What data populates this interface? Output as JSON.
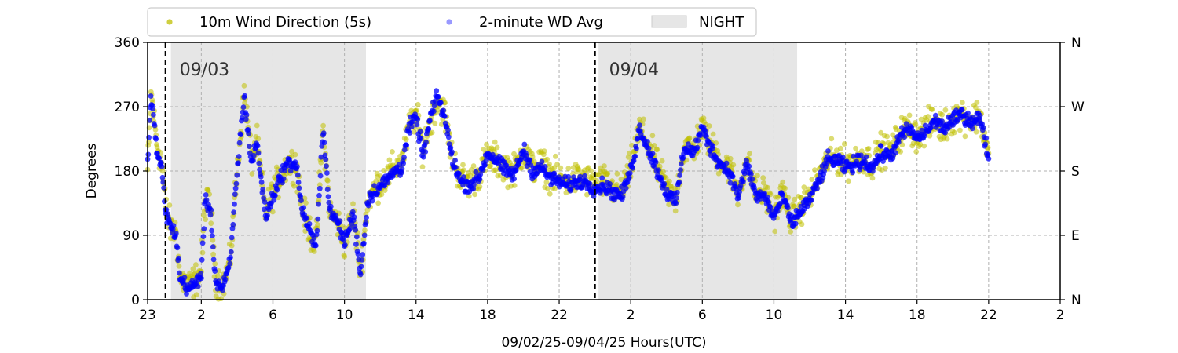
{
  "chart_data": {
    "type": "scatter",
    "xlabel": "09/02/25-09/04/25  Hours(UTC)",
    "ylabel": "Degrees",
    "x_unit": "hours since 09/02/25 23:00 UTC",
    "xlim": [
      0,
      51
    ],
    "ylim": [
      0,
      360
    ],
    "x_ticks": [
      {
        "v": 0,
        "label": "23"
      },
      {
        "v": 3,
        "label": "2"
      },
      {
        "v": 7,
        "label": "6"
      },
      {
        "v": 11,
        "label": "10"
      },
      {
        "v": 15,
        "label": "14"
      },
      {
        "v": 19,
        "label": "18"
      },
      {
        "v": 23,
        "label": "22"
      },
      {
        "v": 27,
        "label": "2"
      },
      {
        "v": 31,
        "label": "6"
      },
      {
        "v": 35,
        "label": "10"
      },
      {
        "v": 39,
        "label": "14"
      },
      {
        "v": 43,
        "label": "18"
      },
      {
        "v": 47,
        "label": "22"
      },
      {
        "v": 51,
        "label": "2"
      }
    ],
    "y_ticks": [
      {
        "v": 0,
        "label": "0"
      },
      {
        "v": 90,
        "label": "90"
      },
      {
        "v": 180,
        "label": "180"
      },
      {
        "v": 270,
        "label": "270"
      },
      {
        "v": 360,
        "label": "360"
      }
    ],
    "y2_ticks": [
      {
        "v": 0,
        "label": "N"
      },
      {
        "v": 90,
        "label": "E"
      },
      {
        "v": 180,
        "label": "S"
      },
      {
        "v": 270,
        "label": "W"
      },
      {
        "v": 360,
        "label": "N"
      }
    ],
    "grid": true,
    "legend_placement": "top-outside",
    "legend": [
      {
        "label": "10m Wind Direction (5s)",
        "kind": "marker",
        "color": "#bfbf00"
      },
      {
        "label": "2-minute WD Avg",
        "kind": "marker",
        "color": "#0000ff"
      },
      {
        "label": "NIGHT",
        "kind": "patch",
        "color": "#e6e6e6"
      }
    ],
    "night_spans": [
      [
        1.3,
        12.2
      ],
      [
        25.2,
        36.3
      ]
    ],
    "day_markers": [
      {
        "x": 1.0,
        "label": "09/03"
      },
      {
        "x": 25.0,
        "label": "09/04"
      }
    ],
    "series": [
      {
        "name": "10m Wind Direction (5s)",
        "color": "#bfbf00",
        "scatter_spread": 22,
        "profile": [
          [
            0.0,
            180
          ],
          [
            0.2,
            290
          ],
          [
            0.5,
            220
          ],
          [
            0.8,
            190
          ],
          [
            1.0,
            130
          ],
          [
            1.3,
            100
          ],
          [
            1.6,
            95
          ],
          [
            1.8,
            30
          ],
          [
            2.3,
            20
          ],
          [
            2.6,
            25
          ],
          [
            3.0,
            40
          ],
          [
            3.2,
            135
          ],
          [
            3.5,
            135
          ],
          [
            3.8,
            30
          ],
          [
            4.2,
            20
          ],
          [
            4.6,
            50
          ],
          [
            5.0,
            180
          ],
          [
            5.4,
            290
          ],
          [
            5.8,
            195
          ],
          [
            6.1,
            220
          ],
          [
            6.6,
            120
          ],
          [
            7.0,
            150
          ],
          [
            7.4,
            170
          ],
          [
            7.8,
            190
          ],
          [
            8.3,
            190
          ],
          [
            8.6,
            130
          ],
          [
            9.0,
            100
          ],
          [
            9.4,
            75
          ],
          [
            9.8,
            240
          ],
          [
            10.2,
            120
          ],
          [
            10.6,
            110
          ],
          [
            11.0,
            80
          ],
          [
            11.5,
            120
          ],
          [
            11.9,
            40
          ],
          [
            12.3,
            140
          ],
          [
            12.8,
            160
          ],
          [
            13.3,
            170
          ],
          [
            13.8,
            185
          ],
          [
            14.2,
            190
          ],
          [
            14.6,
            240
          ],
          [
            15.0,
            260
          ],
          [
            15.4,
            210
          ],
          [
            15.8,
            250
          ],
          [
            16.2,
            280
          ],
          [
            16.6,
            260
          ],
          [
            17.0,
            200
          ],
          [
            17.5,
            170
          ],
          [
            18.0,
            165
          ],
          [
            18.5,
            175
          ],
          [
            19.0,
            200
          ],
          [
            19.5,
            195
          ],
          [
            20.0,
            185
          ],
          [
            20.5,
            180
          ],
          [
            21.0,
            210
          ],
          [
            21.5,
            185
          ],
          [
            22.0,
            190
          ],
          [
            22.5,
            175
          ],
          [
            23.0,
            170
          ],
          [
            23.5,
            165
          ],
          [
            24.0,
            170
          ],
          [
            24.5,
            168
          ],
          [
            25.0,
            160
          ],
          [
            25.5,
            165
          ],
          [
            26.0,
            155
          ],
          [
            26.5,
            150
          ],
          [
            27.0,
            185
          ],
          [
            27.5,
            240
          ],
          [
            28.0,
            215
          ],
          [
            28.5,
            185
          ],
          [
            29.0,
            155
          ],
          [
            29.5,
            140
          ],
          [
            30.0,
            215
          ],
          [
            30.5,
            210
          ],
          [
            31.0,
            240
          ],
          [
            31.5,
            215
          ],
          [
            32.0,
            195
          ],
          [
            32.5,
            185
          ],
          [
            33.0,
            150
          ],
          [
            33.5,
            195
          ],
          [
            34.0,
            150
          ],
          [
            34.5,
            150
          ],
          [
            35.0,
            120
          ],
          [
            35.5,
            150
          ],
          [
            36.0,
            110
          ],
          [
            36.5,
            130
          ],
          [
            37.0,
            145
          ],
          [
            37.5,
            170
          ],
          [
            38.0,
            195
          ],
          [
            38.5,
            200
          ],
          [
            39.0,
            190
          ],
          [
            39.5,
            195
          ],
          [
            40.0,
            200
          ],
          [
            40.5,
            190
          ],
          [
            41.0,
            210
          ],
          [
            41.5,
            205
          ],
          [
            42.0,
            230
          ],
          [
            42.5,
            240
          ],
          [
            43.0,
            230
          ],
          [
            43.5,
            240
          ],
          [
            44.0,
            250
          ],
          [
            44.5,
            240
          ],
          [
            45.0,
            255
          ],
          [
            45.5,
            260
          ],
          [
            46.0,
            250
          ],
          [
            46.5,
            260
          ],
          [
            47.0,
            200
          ]
        ]
      },
      {
        "name": "2-minute WD Avg",
        "color": "#0000ff",
        "scatter_spread": 10,
        "profile": [
          [
            0.0,
            190
          ],
          [
            0.2,
            290
          ],
          [
            0.5,
            210
          ],
          [
            0.8,
            180
          ],
          [
            1.0,
            125
          ],
          [
            1.3,
            100
          ],
          [
            1.6,
            90
          ],
          [
            1.8,
            30
          ],
          [
            2.3,
            15
          ],
          [
            2.6,
            20
          ],
          [
            3.0,
            35
          ],
          [
            3.2,
            135
          ],
          [
            3.5,
            130
          ],
          [
            3.8,
            25
          ],
          [
            4.2,
            15
          ],
          [
            4.6,
            50
          ],
          [
            5.0,
            180
          ],
          [
            5.4,
            285
          ],
          [
            5.8,
            190
          ],
          [
            6.1,
            220
          ],
          [
            6.6,
            115
          ],
          [
            7.0,
            145
          ],
          [
            7.4,
            170
          ],
          [
            7.8,
            190
          ],
          [
            8.3,
            190
          ],
          [
            8.6,
            130
          ],
          [
            9.0,
            100
          ],
          [
            9.4,
            70
          ],
          [
            9.8,
            240
          ],
          [
            10.2,
            120
          ],
          [
            10.6,
            110
          ],
          [
            11.0,
            80
          ],
          [
            11.5,
            120
          ],
          [
            11.9,
            35
          ],
          [
            12.3,
            140
          ],
          [
            12.8,
            155
          ],
          [
            13.3,
            165
          ],
          [
            13.8,
            180
          ],
          [
            14.2,
            185
          ],
          [
            14.6,
            240
          ],
          [
            15.0,
            255
          ],
          [
            15.4,
            200
          ],
          [
            15.8,
            255
          ],
          [
            16.2,
            285
          ],
          [
            16.6,
            255
          ],
          [
            17.0,
            200
          ],
          [
            17.5,
            165
          ],
          [
            18.0,
            160
          ],
          [
            18.5,
            170
          ],
          [
            19.0,
            205
          ],
          [
            19.5,
            195
          ],
          [
            20.0,
            180
          ],
          [
            20.5,
            175
          ],
          [
            21.0,
            210
          ],
          [
            21.5,
            180
          ],
          [
            22.0,
            185
          ],
          [
            22.5,
            170
          ],
          [
            23.0,
            165
          ],
          [
            23.5,
            160
          ],
          [
            24.0,
            165
          ],
          [
            24.5,
            165
          ],
          [
            25.0,
            155
          ],
          [
            25.5,
            160
          ],
          [
            26.0,
            150
          ],
          [
            26.5,
            145
          ],
          [
            27.0,
            180
          ],
          [
            27.5,
            240
          ],
          [
            28.0,
            210
          ],
          [
            28.5,
            180
          ],
          [
            29.0,
            150
          ],
          [
            29.5,
            135
          ],
          [
            30.0,
            215
          ],
          [
            30.5,
            205
          ],
          [
            31.0,
            240
          ],
          [
            31.5,
            210
          ],
          [
            32.0,
            190
          ],
          [
            32.5,
            180
          ],
          [
            33.0,
            145
          ],
          [
            33.5,
            190
          ],
          [
            34.0,
            145
          ],
          [
            34.5,
            145
          ],
          [
            35.0,
            115
          ],
          [
            35.5,
            145
          ],
          [
            36.0,
            105
          ],
          [
            36.5,
            125
          ],
          [
            37.0,
            140
          ],
          [
            37.5,
            165
          ],
          [
            38.0,
            195
          ],
          [
            38.5,
            195
          ],
          [
            39.0,
            185
          ],
          [
            39.5,
            190
          ],
          [
            40.0,
            195
          ],
          [
            40.5,
            185
          ],
          [
            41.0,
            205
          ],
          [
            41.5,
            200
          ],
          [
            42.0,
            225
          ],
          [
            42.5,
            240
          ],
          [
            43.0,
            225
          ],
          [
            43.5,
            235
          ],
          [
            44.0,
            250
          ],
          [
            44.5,
            240
          ],
          [
            45.0,
            250
          ],
          [
            45.5,
            260
          ],
          [
            46.0,
            250
          ],
          [
            46.5,
            255
          ],
          [
            47.0,
            200
          ]
        ]
      }
    ]
  }
}
